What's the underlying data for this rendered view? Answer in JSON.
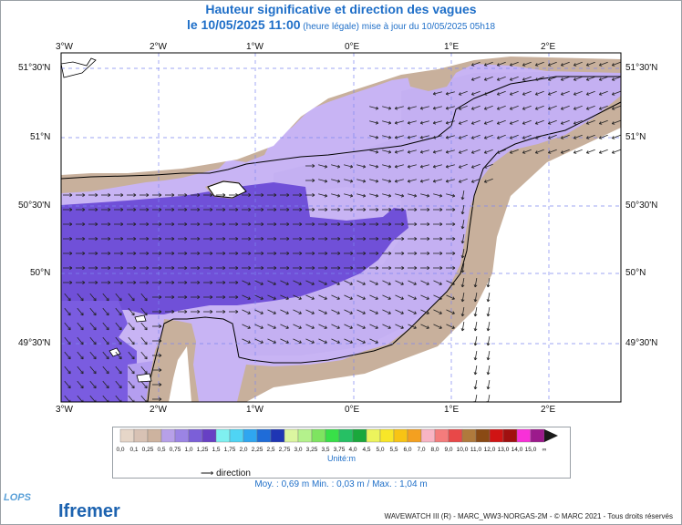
{
  "title": {
    "line1": "Hauteur significative et direction des vagues",
    "line2_main": "le 10/05/2025 11:00",
    "line2_sub": " (heure légale) mise à jour du 10/05/2025 05h18"
  },
  "axes": {
    "lon_labels": [
      "3°W",
      "2°W",
      "1°W",
      "0°E",
      "1°E",
      "2°E"
    ],
    "lat_labels": [
      "51°30'N",
      "51°N",
      "50°30'N",
      "50°N",
      "49°30'N"
    ]
  },
  "legend": {
    "colors": [
      "#e6d6c8",
      "#d8c2b4",
      "#cdb39f",
      "#b7a0e8",
      "#9b84e4",
      "#7b5fd8",
      "#6740c4",
      "#7ff0f0",
      "#4fd4f4",
      "#2fa6f0",
      "#1f6cd8",
      "#1e36b4",
      "#dcf6a0",
      "#b4f28c",
      "#7ee460",
      "#38e048",
      "#26c064",
      "#1aa83c",
      "#ecf45c",
      "#f8e628",
      "#f8c414",
      "#f4a020",
      "#f8b4c4",
      "#f47c7c",
      "#e84848",
      "#b07a3c",
      "#8a4a14",
      "#d01414",
      "#a01010",
      "#f830d8",
      "#9c1a8c",
      "#1a1a1a"
    ],
    "labels": [
      "0,0",
      "0,1",
      "0,25",
      "0,5",
      "0,75",
      "1,0",
      "1,25",
      "1,5",
      "1,75",
      "2,0",
      "2,25",
      "2,5",
      "2,75",
      "3,0",
      "3,25",
      "3,5",
      "3,75",
      "4,0",
      "4,5",
      "5,0",
      "5,5",
      "6,0",
      "7,0",
      "8,0",
      "9,0",
      "10,0",
      "11,0",
      "12,0",
      "13,0",
      "14,0",
      "15,0",
      "∞"
    ],
    "unit": "Unité:m",
    "direction_label": "direction"
  },
  "stats": "Moy. : 0,69 m    Min. : 0,03 m / Max. : 1,04 m",
  "footer": "WAVEWATCH III (R) - MARC_WW3-NORGAS-2M - © MARC 2021 - Tous droits réservés",
  "logos": {
    "lops": "LOPS",
    "ifremer": "Ifremer"
  },
  "colors": {
    "land": "#c8b09c",
    "sea_light": "#c8b4f4",
    "sea_mid": "#a894ec",
    "sea_dark": "#7050d8",
    "sea_darkest": "#6a3fcf",
    "title": "#1f6fc8"
  }
}
